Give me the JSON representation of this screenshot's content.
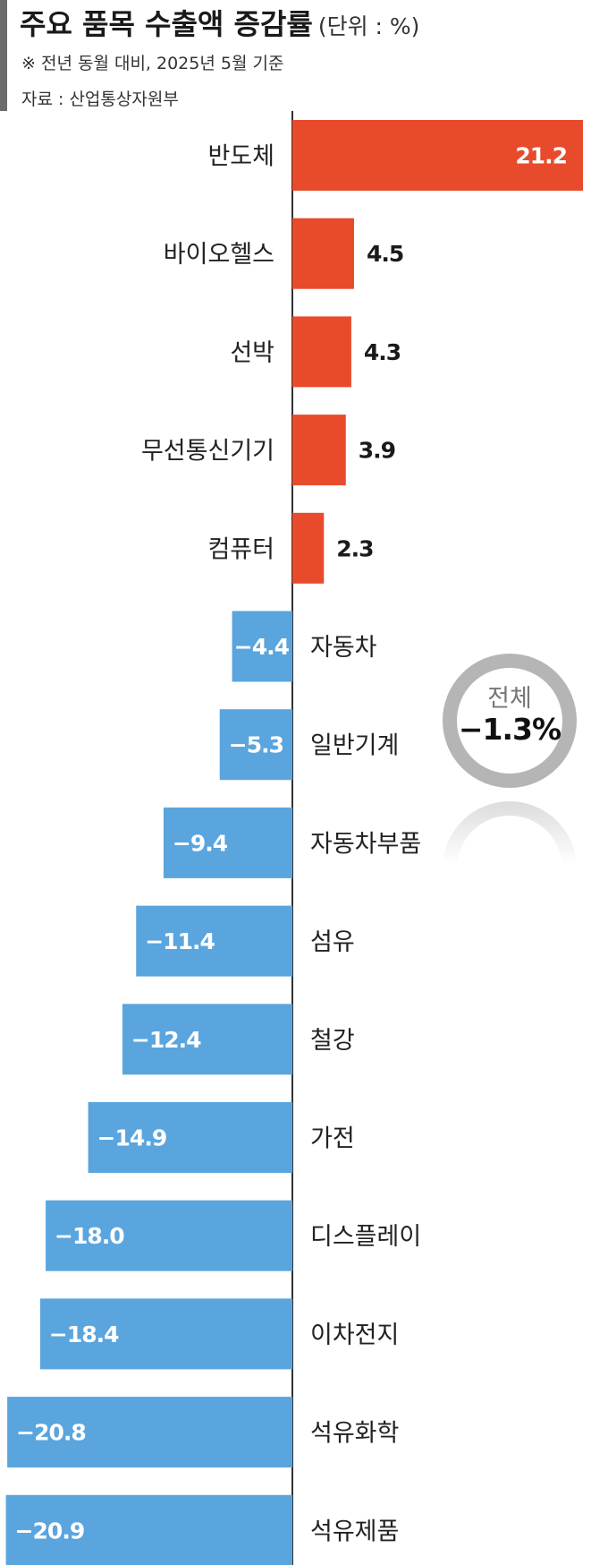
{
  "header": {
    "title": "주요 품목 수출액 증감률",
    "unit": "(단위 : %)",
    "note": "※ 전년 동월 대비, 2025년 5월 기준",
    "source": "자료 : 산업통상자원부"
  },
  "total": {
    "label": "전체",
    "value": "−1.3%"
  },
  "colors": {
    "positive": "#e84b2b",
    "negative": "#5aa5de",
    "axis": "#333333",
    "ring": "#b5b5b5"
  },
  "chart_data": {
    "type": "bar",
    "orientation": "horizontal",
    "title": "주요 품목 수출액 증감률",
    "unit": "%",
    "categories": [
      "반도체",
      "바이오헬스",
      "선박",
      "무선통신기기",
      "컴퓨터",
      "자동차",
      "일반기계",
      "자동차부품",
      "섬유",
      "철강",
      "가전",
      "디스플레이",
      "이차전지",
      "석유화학",
      "석유제품"
    ],
    "values": [
      21.2,
      4.5,
      4.3,
      3.9,
      2.3,
      -4.4,
      -5.3,
      -9.4,
      -11.4,
      -12.4,
      -14.9,
      -18.0,
      -18.4,
      -20.8,
      -20.9
    ],
    "value_labels": [
      "21.2",
      "4.5",
      "4.3",
      "3.9",
      "2.3",
      "−4.4",
      "−5.3",
      "−9.4",
      "−11.4",
      "−12.4",
      "−14.9",
      "−18.0",
      "−18.4",
      "−20.8",
      "−20.9"
    ],
    "xlim": [
      -20.9,
      21.2
    ],
    "grid": false,
    "legend": "none"
  }
}
